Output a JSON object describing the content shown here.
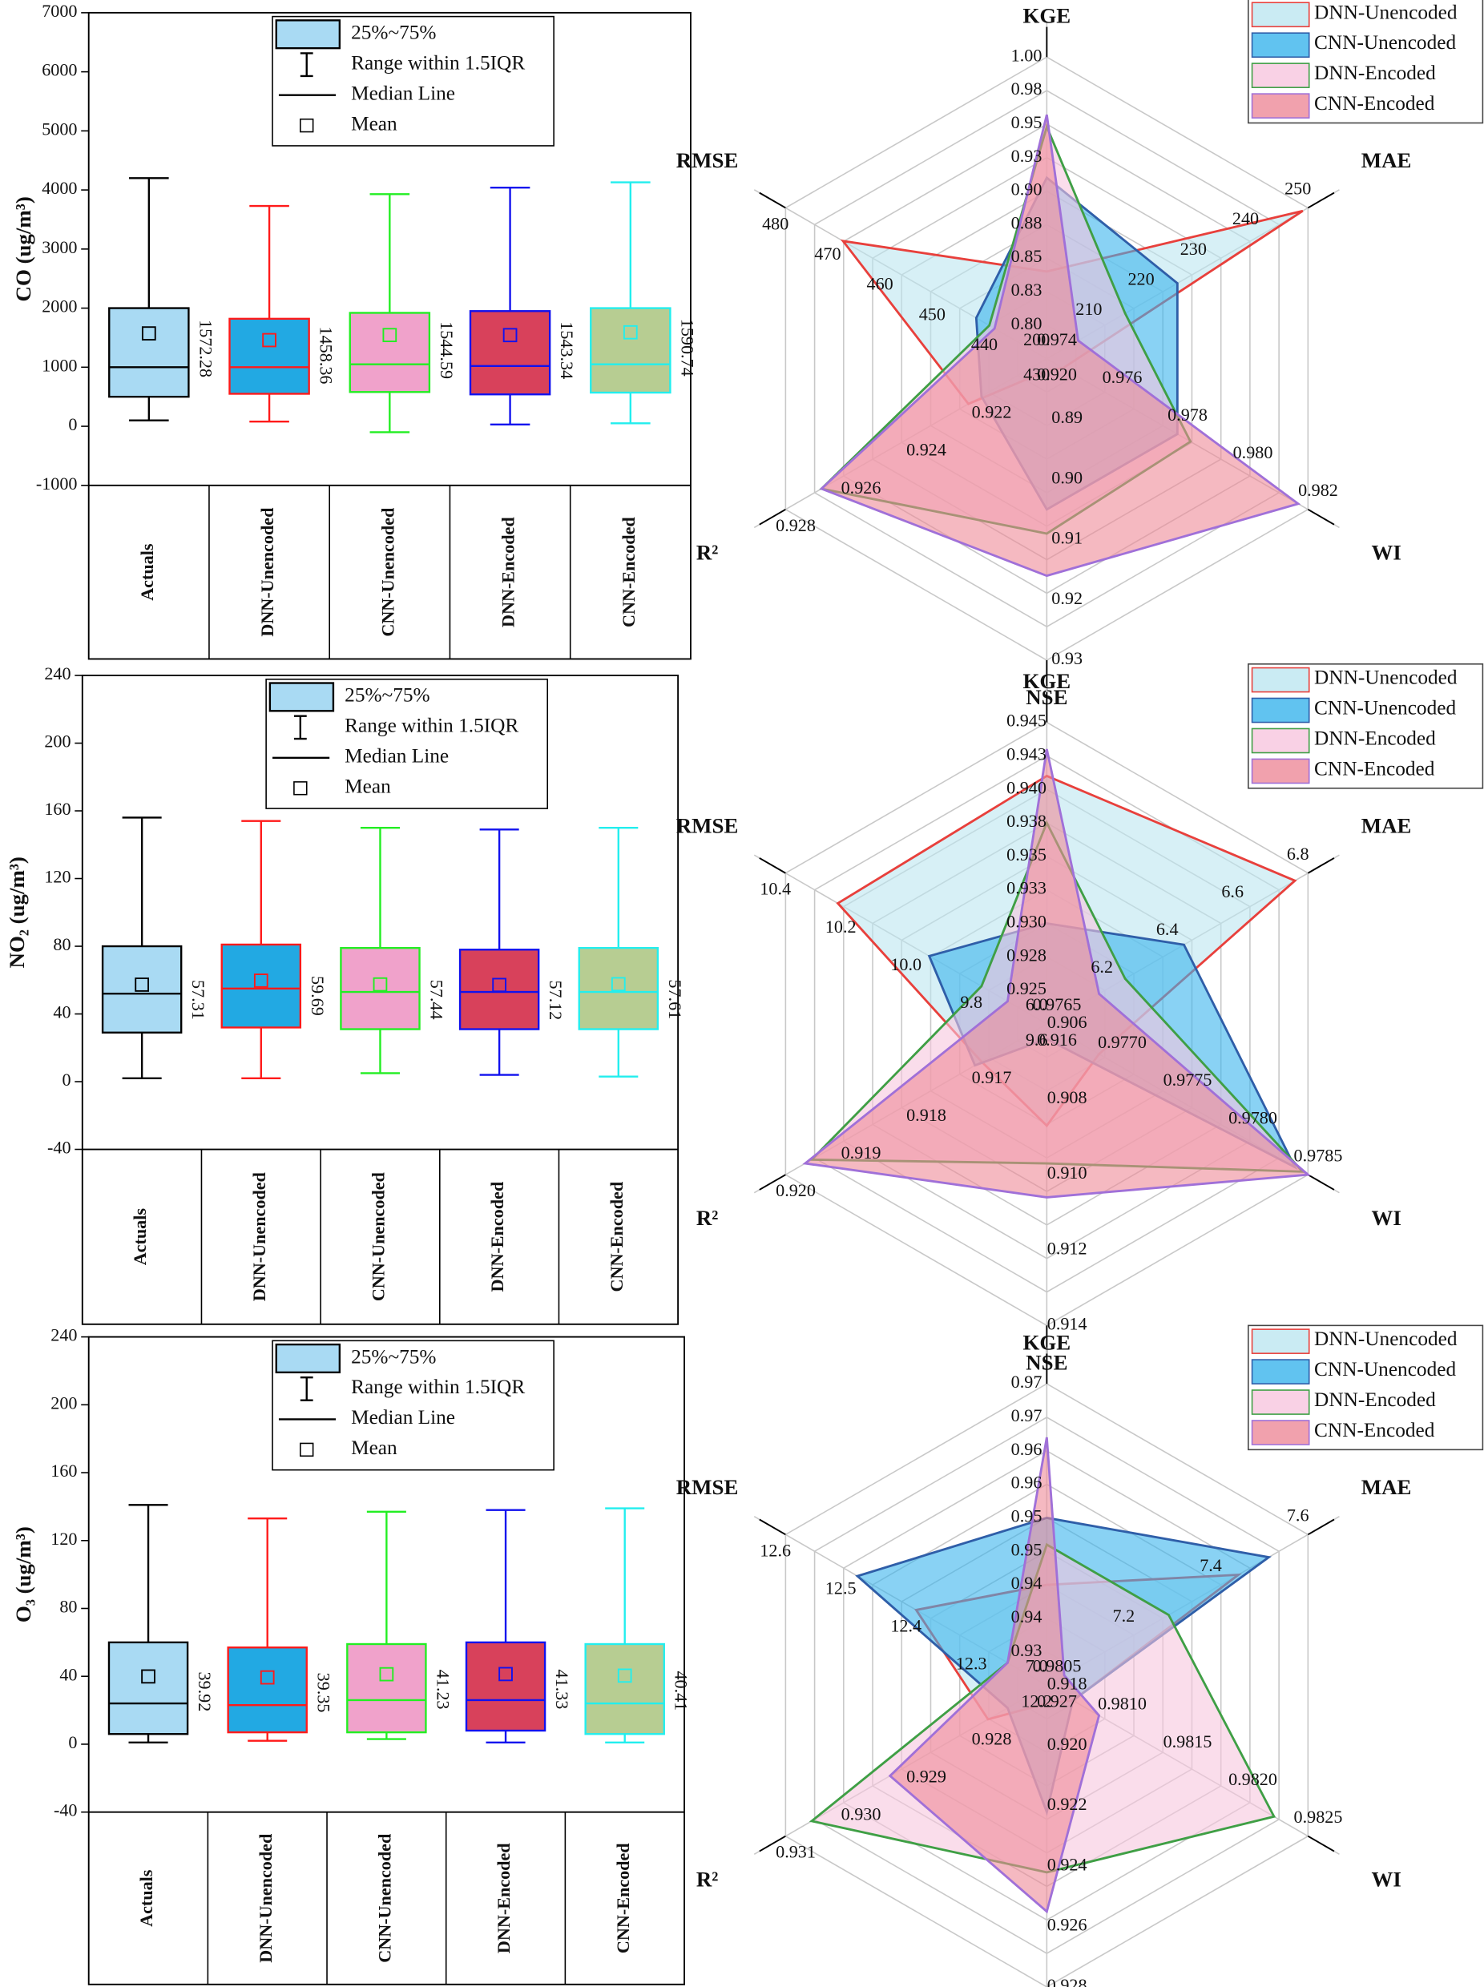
{
  "chart_data": [
    {
      "type": "box",
      "y_label": "CO (ug/m³)",
      "ylim": [
        -1000,
        7000
      ],
      "yticks": [
        -1000,
        0,
        1000,
        2000,
        3000,
        4000,
        5000,
        6000,
        7000
      ],
      "legend_labels": [
        "25%~75%",
        "Range within 1.5IQR",
        "Median Line",
        "Mean"
      ],
      "categories": [
        "Actuals",
        "DNN-Unencoded",
        "CNN-Unencoded",
        "DNN-Encoded",
        "CNN-Encoded"
      ],
      "boxes": [
        {
          "whisker_low": 100,
          "q1": 500,
          "median": 1000,
          "q3": 2000,
          "whisker_high": 4200,
          "mean": 1572.28,
          "fill": "#a9daf3",
          "edge": "#000000"
        },
        {
          "whisker_low": 80,
          "q1": 550,
          "median": 1000,
          "q3": 1820,
          "whisker_high": 3730,
          "mean": 1458.36,
          "fill": "#22a9e3",
          "edge": "#ff1a1a"
        },
        {
          "whisker_low": -100,
          "q1": 580,
          "median": 1050,
          "q3": 1920,
          "whisker_high": 3930,
          "mean": 1544.59,
          "fill": "#f0a2cb",
          "edge": "#22ee22"
        },
        {
          "whisker_low": 30,
          "q1": 540,
          "median": 1020,
          "q3": 1950,
          "whisker_high": 4040,
          "mean": 1543.34,
          "fill": "#d8415b",
          "edge": "#1111ee"
        },
        {
          "whisker_low": 50,
          "q1": 570,
          "median": 1050,
          "q3": 2000,
          "whisker_high": 4130,
          "mean": 1590.74,
          "fill": "#b7cd92",
          "edge": "#22eeee"
        }
      ]
    },
    {
      "type": "radar",
      "legend_position": "upper right",
      "axes": [
        {
          "name": "KGE",
          "lim": [
            0.775,
            1.0
          ],
          "ticks": [
            {
              "value": 0.8,
              "label": "0.80"
            },
            {
              "value": 0.825,
              "label": "0.83"
            },
            0.85,
            {
              "value": 0.875,
              "label": "0.88"
            },
            {
              "value": 0.9,
              "label": "0.90"
            },
            {
              "value": 0.925,
              "label": "0.93"
            },
            0.95,
            {
              "value": 0.975,
              "label": "0.98"
            },
            {
              "value": 1.0,
              "label": "1.00"
            }
          ]
        },
        {
          "name": "MAE",
          "lim": [
            200,
            250
          ],
          "ticks": [
            200,
            210,
            220,
            230,
            240,
            250
          ]
        },
        {
          "name": "WI",
          "lim": [
            0.974,
            0.982
          ],
          "ticks": [
            0.974,
            0.976,
            0.978,
            {
              "value": 0.98,
              "label": "0.980"
            },
            0.982
          ]
        },
        {
          "name": "NSE",
          "lim": [
            0.88,
            0.93
          ],
          "ticks": [
            0.89,
            {
              "value": 0.9,
              "label": "0.90"
            },
            0.91,
            0.92,
            0.93
          ]
        },
        {
          "name": "R²",
          "lim": [
            0.92,
            0.928
          ],
          "ticks": [
            {
              "value": 0.92,
              "label": "0.920"
            },
            0.922,
            0.924,
            0.926,
            0.928
          ]
        },
        {
          "name": "RMSE",
          "lim": [
            430,
            480
          ],
          "ticks": [
            430,
            440,
            450,
            460,
            470,
            480
          ]
        }
      ],
      "series": [
        {
          "name": "DNN-Unencoded",
          "color": "#bde6f0",
          "edge": "#e8403c",
          "values": [
            0.84,
            249,
            0.9745,
            0.882,
            0.9224,
            469
          ]
        },
        {
          "name": "CNN-Unencoded",
          "color": "#3ab4ec",
          "edge": "#2f5ea8",
          "values": [
            0.91,
            225,
            0.978,
            0.905,
            0.922,
            443.5
          ]
        },
        {
          "name": "DNN-Encoded",
          "color": "#f7c6de",
          "edge": "#3f9f45",
          "values": [
            0.948,
            215,
            0.9784,
            0.909,
            0.9269,
            441
          ]
        },
        {
          "name": "CNN-Encoded",
          "color": "#ee8a98",
          "edge": "#a070d8",
          "values": [
            0.957,
            206,
            0.9817,
            0.916,
            0.9269,
            440
          ]
        }
      ]
    },
    {
      "type": "box",
      "y_label": "NO₂ (ug/m³)",
      "ylim": [
        -40,
        240
      ],
      "yticks": [
        -40,
        0,
        40,
        80,
        120,
        160,
        200,
        240
      ],
      "legend_labels": [
        "25%~75%",
        "Range within 1.5IQR",
        "Median Line",
        "Mean"
      ],
      "categories": [
        "Actuals",
        "DNN-Unencoded",
        "CNN-Unencoded",
        "DNN-Encoded",
        "CNN-Encoded"
      ],
      "boxes": [
        {
          "whisker_low": 2,
          "q1": 29,
          "median": 52,
          "q3": 80,
          "whisker_high": 156,
          "mean": 57.31,
          "fill": "#a9daf3",
          "edge": "#000000"
        },
        {
          "whisker_low": 2,
          "q1": 32,
          "median": 55,
          "q3": 81,
          "whisker_high": 154,
          "mean": 59.69,
          "fill": "#22a9e3",
          "edge": "#ff1a1a"
        },
        {
          "whisker_low": 5,
          "q1": 31,
          "median": 53,
          "q3": 79,
          "whisker_high": 150,
          "mean": 57.44,
          "fill": "#f0a2cb",
          "edge": "#22ee22"
        },
        {
          "whisker_low": 4,
          "q1": 31,
          "median": 53,
          "q3": 78,
          "whisker_high": 149,
          "mean": 57.12,
          "fill": "#d8415b",
          "edge": "#1111ee"
        },
        {
          "whisker_low": 3,
          "q1": 31,
          "median": 53,
          "q3": 79,
          "whisker_high": 150,
          "mean": 57.61,
          "fill": "#b7cd92",
          "edge": "#22eeee"
        }
      ]
    },
    {
      "type": "radar",
      "legend_position": "upper right",
      "axes": [
        {
          "name": "KGE",
          "lim": [
            0.9225,
            0.945
          ],
          "ticks": [
            0.925,
            {
              "value": 0.9275,
              "label": "0.928"
            },
            {
              "value": 0.93,
              "label": "0.930"
            },
            {
              "value": 0.9325,
              "label": "0.933"
            },
            0.935,
            {
              "value": 0.9375,
              "label": "0.938"
            },
            {
              "value": 0.94,
              "label": "0.940"
            },
            {
              "value": 0.9425,
              "label": "0.943"
            },
            0.945
          ]
        },
        {
          "name": "MAE",
          "lim": [
            6.0,
            6.8
          ],
          "ticks": [
            {
              "value": 6.0,
              "label": "6.0"
            },
            6.2,
            6.4,
            6.6,
            6.8
          ]
        },
        {
          "name": "WI",
          "lim": [
            0.9765,
            0.9785
          ],
          "ticks": [
            0.9765,
            {
              "value": 0.977,
              "label": "0.9770"
            },
            0.9775,
            {
              "value": 0.978,
              "label": "0.9780"
            },
            0.9785
          ]
        },
        {
          "name": "NSE",
          "lim": [
            0.906,
            0.914
          ],
          "ticks": [
            0.906,
            0.908,
            {
              "value": 0.91,
              "label": "0.910"
            },
            0.912,
            0.914
          ]
        },
        {
          "name": "R²",
          "lim": [
            0.916,
            0.92
          ],
          "ticks": [
            0.916,
            0.917,
            0.918,
            0.919,
            {
              "value": 0.92,
              "label": "0.920"
            }
          ]
        },
        {
          "name": "RMSE",
          "lim": [
            9.6,
            10.4
          ],
          "ticks": [
            9.6,
            9.8,
            {
              "value": 10.0,
              "label": "10.0"
            },
            10.2,
            10.4
          ]
        }
      ],
      "series": [
        {
          "name": "DNN-Unencoded",
          "color": "#bde6f0",
          "edge": "#e8403c",
          "values": [
            0.941,
            6.76,
            0.9769,
            0.9087,
            0.917,
            10.24
          ]
        },
        {
          "name": "CNN-Unencoded",
          "color": "#3ab4ec",
          "edge": "#2f5ea8",
          "values": [
            0.93,
            6.42,
            0.9784,
            0.9064,
            0.9171,
            9.96
          ]
        },
        {
          "name": "DNN-Encoded",
          "color": "#f7c6de",
          "edge": "#3f9f45",
          "values": [
            0.9375,
            6.24,
            0.97846,
            0.9097,
            0.9196,
            9.8
          ]
        },
        {
          "name": "CNN-Encoded",
          "color": "#ee8a98",
          "edge": "#a070d8",
          "values": [
            0.943,
            6.16,
            0.9785,
            0.9106,
            0.9197,
            9.72
          ]
        }
      ]
    },
    {
      "type": "box",
      "y_label": "O₃ (ug/m³)",
      "ylim": [
        -40,
        240
      ],
      "yticks": [
        -40,
        0,
        40,
        80,
        120,
        160,
        200,
        240
      ],
      "legend_labels": [
        "25%~75%",
        "Range within 1.5IQR",
        "Median Line",
        "Mean"
      ],
      "categories": [
        "Actuals",
        "DNN-Unencoded",
        "CNN-Unencoded",
        "DNN-Encoded",
        "CNN-Encoded"
      ],
      "boxes": [
        {
          "whisker_low": 1,
          "q1": 6,
          "median": 24,
          "q3": 60,
          "whisker_high": 141,
          "mean": 39.92,
          "fill": "#a9daf3",
          "edge": "#000000"
        },
        {
          "whisker_low": 2,
          "q1": 7,
          "median": 23,
          "q3": 57,
          "whisker_high": 133,
          "mean": 39.35,
          "fill": "#22a9e3",
          "edge": "#ff1a1a"
        },
        {
          "whisker_low": 3,
          "q1": 7,
          "median": 26,
          "q3": 59,
          "whisker_high": 137,
          "mean": 41.23,
          "fill": "#f0a2cb",
          "edge": "#22ee22"
        },
        {
          "whisker_low": 1,
          "q1": 8,
          "median": 26,
          "q3": 60,
          "whisker_high": 138,
          "mean": 41.33,
          "fill": "#d8415b",
          "edge": "#1111ee"
        },
        {
          "whisker_low": 1,
          "q1": 6,
          "median": 24,
          "q3": 59,
          "whisker_high": 139,
          "mean": 40.41,
          "fill": "#b7cd92",
          "edge": "#22eeee"
        }
      ]
    },
    {
      "type": "radar",
      "legend_position": "upper right",
      "axes": [
        {
          "name": "KGE",
          "lim": [
            0.925,
            0.97
          ],
          "ticks": [
            0.93,
            {
              "value": 0.935,
              "label": "0.94"
            },
            0.94,
            {
              "value": 0.945,
              "label": "0.95"
            },
            0.95,
            {
              "value": 0.955,
              "label": "0.96"
            },
            0.96,
            {
              "value": 0.965,
              "label": "0.97"
            },
            0.97
          ]
        },
        {
          "name": "MAE",
          "lim": [
            7.0,
            7.6
          ],
          "ticks": [
            {
              "value": 7.0,
              "label": "7.0"
            },
            7.2,
            7.4,
            7.6
          ]
        },
        {
          "name": "WI",
          "lim": [
            0.9805,
            0.9825
          ],
          "ticks": [
            0.9805,
            {
              "value": 0.981,
              "label": "0.9810"
            },
            0.9815,
            {
              "value": 0.982,
              "label": "0.9820"
            },
            0.9825
          ]
        },
        {
          "name": "NSE",
          "lim": [
            0.918,
            0.928
          ],
          "ticks": [
            0.918,
            {
              "value": 0.92,
              "label": "0.920"
            },
            0.922,
            0.924,
            0.926,
            0.928
          ]
        },
        {
          "name": "R²",
          "lim": [
            0.927,
            0.931
          ],
          "ticks": [
            0.927,
            0.928,
            0.929,
            {
              "value": 0.93,
              "label": "0.930"
            },
            0.931
          ]
        },
        {
          "name": "RMSE",
          "lim": [
            12.2,
            12.6
          ],
          "ticks": [
            12.2,
            12.3,
            12.4,
            12.5,
            12.6
          ]
        }
      ],
      "series": [
        {
          "name": "DNN-Unencoded",
          "color": "#bde6f0",
          "edge": "#e8403c",
          "values": [
            0.94,
            7.44,
            0.9807,
            0.9186,
            0.9279,
            12.4
          ]
        },
        {
          "name": "CNN-Unencoded",
          "color": "#3ab4ec",
          "edge": "#2f5ea8",
          "values": [
            0.95,
            7.51,
            0.9807,
            0.9222,
            0.9276,
            12.49
          ]
        },
        {
          "name": "DNN-Encoded",
          "color": "#f7c6de",
          "edge": "#3f9f45",
          "values": [
            0.946,
            7.28,
            0.98224,
            0.9242,
            0.9306,
            12.26
          ]
        },
        {
          "name": "CNN-Encoded",
          "color": "#ee8a98",
          "edge": "#a070d8",
          "values": [
            0.962,
            7.04,
            0.9809,
            0.9255,
            0.9294,
            12.26
          ]
        }
      ]
    }
  ]
}
